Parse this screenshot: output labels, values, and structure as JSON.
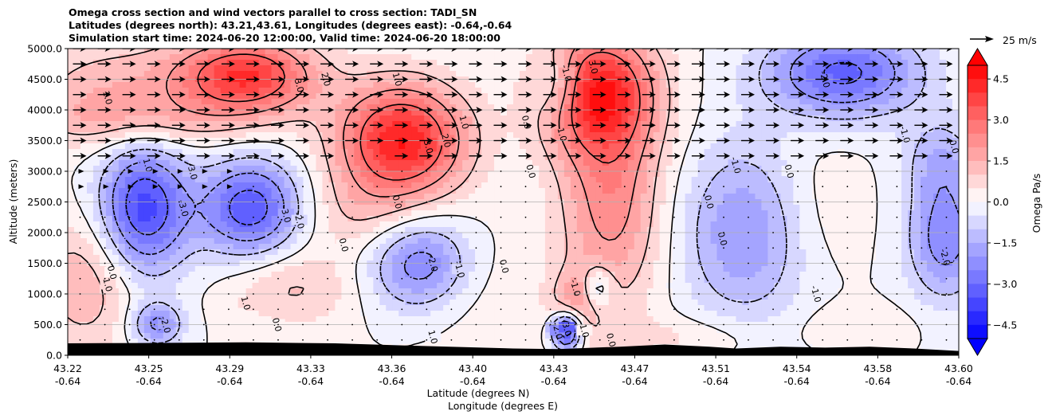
{
  "chart_data": {
    "type": "contour",
    "title_lines": [
      "Omega cross section and wind vectors parallel to cross section: TADI_SN",
      "Latitudes (degrees north): 43.21,43.61, Longitudes (degrees east): -0.64,-0.64",
      "Simulation start time: 2024-06-20 12:00:00, Valid time: 2024-06-20 18:00:00"
    ],
    "xlabel_line1": "Latitude (degrees N)",
    "xlabel_line2": "Longitude (degrees E)",
    "ylabel": "Altitude (meters)",
    "x_ticks": [
      {
        "lat": "43.22",
        "lon": "-0.64"
      },
      {
        "lat": "43.25",
        "lon": "-0.64"
      },
      {
        "lat": "43.29",
        "lon": "-0.64"
      },
      {
        "lat": "43.33",
        "lon": "-0.64"
      },
      {
        "lat": "43.36",
        "lon": "-0.64"
      },
      {
        "lat": "43.40",
        "lon": "-0.64"
      },
      {
        "lat": "43.43",
        "lon": "-0.64"
      },
      {
        "lat": "43.47",
        "lon": "-0.64"
      },
      {
        "lat": "43.51",
        "lon": "-0.64"
      },
      {
        "lat": "43.54",
        "lon": "-0.64"
      },
      {
        "lat": "43.58",
        "lon": "-0.64"
      },
      {
        "lat": "43.60",
        "lon": "-0.64"
      }
    ],
    "y_ticks": [
      "0.0",
      "500.0",
      "1000.0",
      "1500.0",
      "2000.0",
      "2500.0",
      "3000.0",
      "3500.0",
      "4000.0",
      "4500.0",
      "5000.0"
    ],
    "ylim": [
      0,
      5000
    ],
    "grid": "horizontal",
    "colorbar": {
      "label": "Omega Pa/s",
      "ticks": [
        "4.5",
        "3.0",
        "1.5",
        "0.0",
        "−1.5",
        "−3.0",
        "−4.5"
      ],
      "range": [
        -5,
        5
      ],
      "extend": "both",
      "cmap": "bwr"
    },
    "quiver_key": "25 m/s",
    "contour_labels": [
      "0.0",
      "1.0",
      "2.0",
      "3.0",
      "-1.0",
      "-2.0",
      "-3.0"
    ],
    "cells": [
      {
        "x": 0.02,
        "y": 1200,
        "v": 1.5,
        "sx": 0.04,
        "sy": 800
      },
      {
        "x": 0.05,
        "y": 4300,
        "v": 1.4,
        "sx": 0.07,
        "sy": 600
      },
      {
        "x": 0.085,
        "y": 2400,
        "v": -3.8,
        "sx": 0.035,
        "sy": 750
      },
      {
        "x": 0.1,
        "y": 500,
        "v": -2.2,
        "sx": 0.02,
        "sy": 250
      },
      {
        "x": 0.205,
        "y": 2400,
        "v": -3.5,
        "sx": 0.04,
        "sy": 550
      },
      {
        "x": 0.2,
        "y": 4550,
        "v": 4.0,
        "sx": 0.055,
        "sy": 450
      },
      {
        "x": 0.09,
        "y": 3800,
        "v": 0.9,
        "sx": 0.09,
        "sy": 300
      },
      {
        "x": 0.25,
        "y": 1100,
        "v": 1.1,
        "sx": 0.05,
        "sy": 450
      },
      {
        "x": 0.375,
        "y": 3500,
        "v": 4.5,
        "sx": 0.05,
        "sy": 650
      },
      {
        "x": 0.395,
        "y": 1500,
        "v": -2.6,
        "sx": 0.04,
        "sy": 550
      },
      {
        "x": 0.33,
        "y": 2300,
        "v": 0.9,
        "sx": 0.05,
        "sy": 500
      },
      {
        "x": 0.45,
        "y": 1000,
        "v": 0.4,
        "sx": 0.06,
        "sy": 800
      },
      {
        "x": 0.55,
        "y": 4400,
        "v": -1.5,
        "sx": 0.02,
        "sy": 400
      },
      {
        "x": 0.595,
        "y": 4300,
        "v": 4.2,
        "sx": 0.045,
        "sy": 700
      },
      {
        "x": 0.61,
        "y": 2500,
        "v": 2.3,
        "sx": 0.04,
        "sy": 1200
      },
      {
        "x": 0.56,
        "y": 400,
        "v": -4.5,
        "sx": 0.012,
        "sy": 220
      },
      {
        "x": 0.595,
        "y": 1100,
        "v": -1.7,
        "sx": 0.012,
        "sy": 250
      },
      {
        "x": 0.57,
        "y": 800,
        "v": 1.5,
        "sx": 0.02,
        "sy": 400
      },
      {
        "x": 0.76,
        "y": 2000,
        "v": -2.0,
        "sx": 0.05,
        "sy": 1000
      },
      {
        "x": 0.84,
        "y": 2400,
        "v": 0.5,
        "sx": 0.04,
        "sy": 800
      },
      {
        "x": 0.87,
        "y": 4600,
        "v": -3.2,
        "sx": 0.06,
        "sy": 500
      },
      {
        "x": 0.985,
        "y": 1900,
        "v": -2.4,
        "sx": 0.03,
        "sy": 700
      },
      {
        "x": 0.98,
        "y": 3200,
        "v": -1.3,
        "sx": 0.03,
        "sy": 500
      },
      {
        "x": 0.7,
        "y": 300,
        "v": 0.6,
        "sx": 0.06,
        "sy": 250
      },
      {
        "x": 0.89,
        "y": 500,
        "v": 0.4,
        "sx": 0.05,
        "sy": 250
      }
    ],
    "terrain": [
      [
        0.0,
        195
      ],
      [
        0.08,
        200
      ],
      [
        0.2,
        210
      ],
      [
        0.3,
        195
      ],
      [
        0.4,
        150
      ],
      [
        0.5,
        110
      ],
      [
        0.55,
        100
      ],
      [
        0.62,
        140
      ],
      [
        0.67,
        175
      ],
      [
        0.72,
        140
      ],
      [
        0.75,
        110
      ],
      [
        0.8,
        140
      ],
      [
        0.85,
        125
      ],
      [
        0.9,
        140
      ],
      [
        0.95,
        110
      ],
      [
        1.0,
        70
      ]
    ],
    "vectors": {
      "upper_rows_m": [
        5000,
        4750,
        4500,
        4250,
        4000,
        3750,
        3500,
        3250
      ],
      "strong_scale": 1.0
    }
  }
}
